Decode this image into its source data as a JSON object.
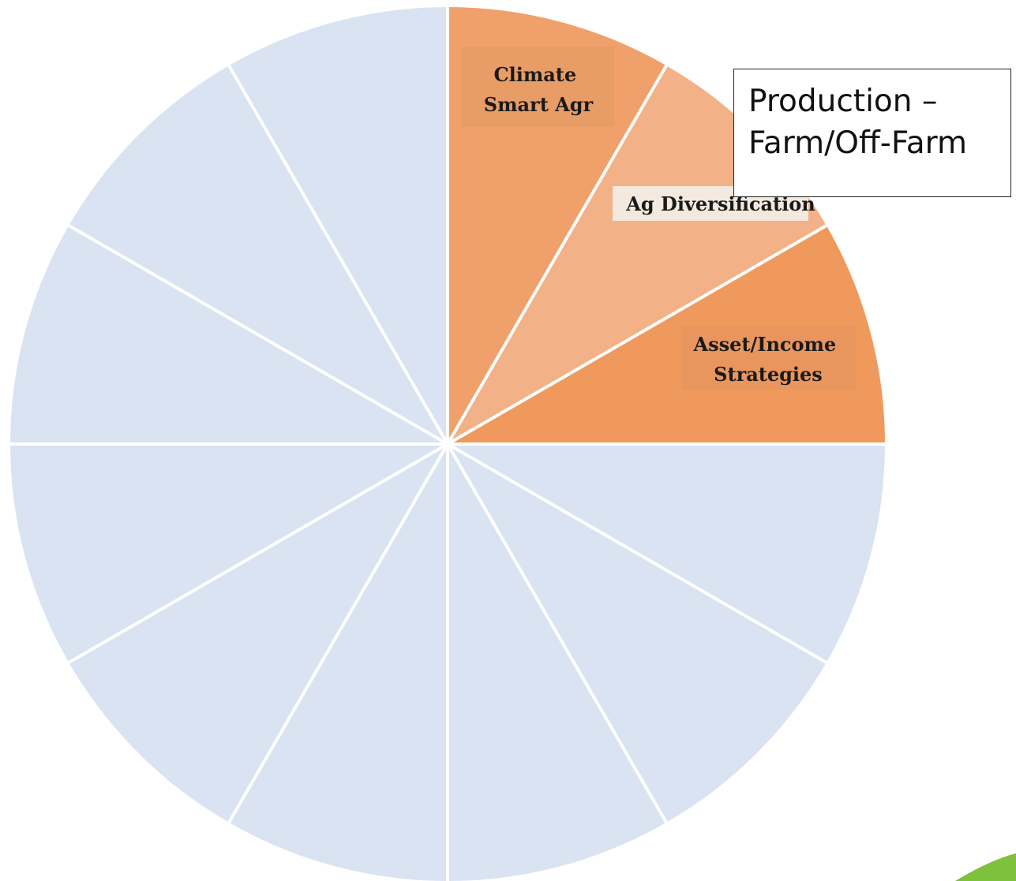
{
  "diagram": {
    "segment_count": 12,
    "colors": {
      "background": "#ffffff",
      "empty_segment": "#dae3f2",
      "divider": "#ffffff",
      "segment_1": "#f0a06a",
      "segment_2": "#f2b186",
      "segment_3": "#f0995c",
      "label_1_bg": "#e89c66",
      "label_2_bg": "#f3e9df",
      "label_3_bg": "#e8965e",
      "corner_accent": "#7dc23a"
    },
    "highlighted_segments": [
      {
        "label_lines": [
          "Climate",
          "Smart Agr"
        ]
      },
      {
        "label_lines": [
          "Ag Diversification"
        ]
      },
      {
        "label_lines": [
          "Asset/Income",
          "Strategies"
        ]
      }
    ]
  },
  "callout": {
    "line1": "Production –",
    "line2": "Farm/Off-Farm"
  }
}
